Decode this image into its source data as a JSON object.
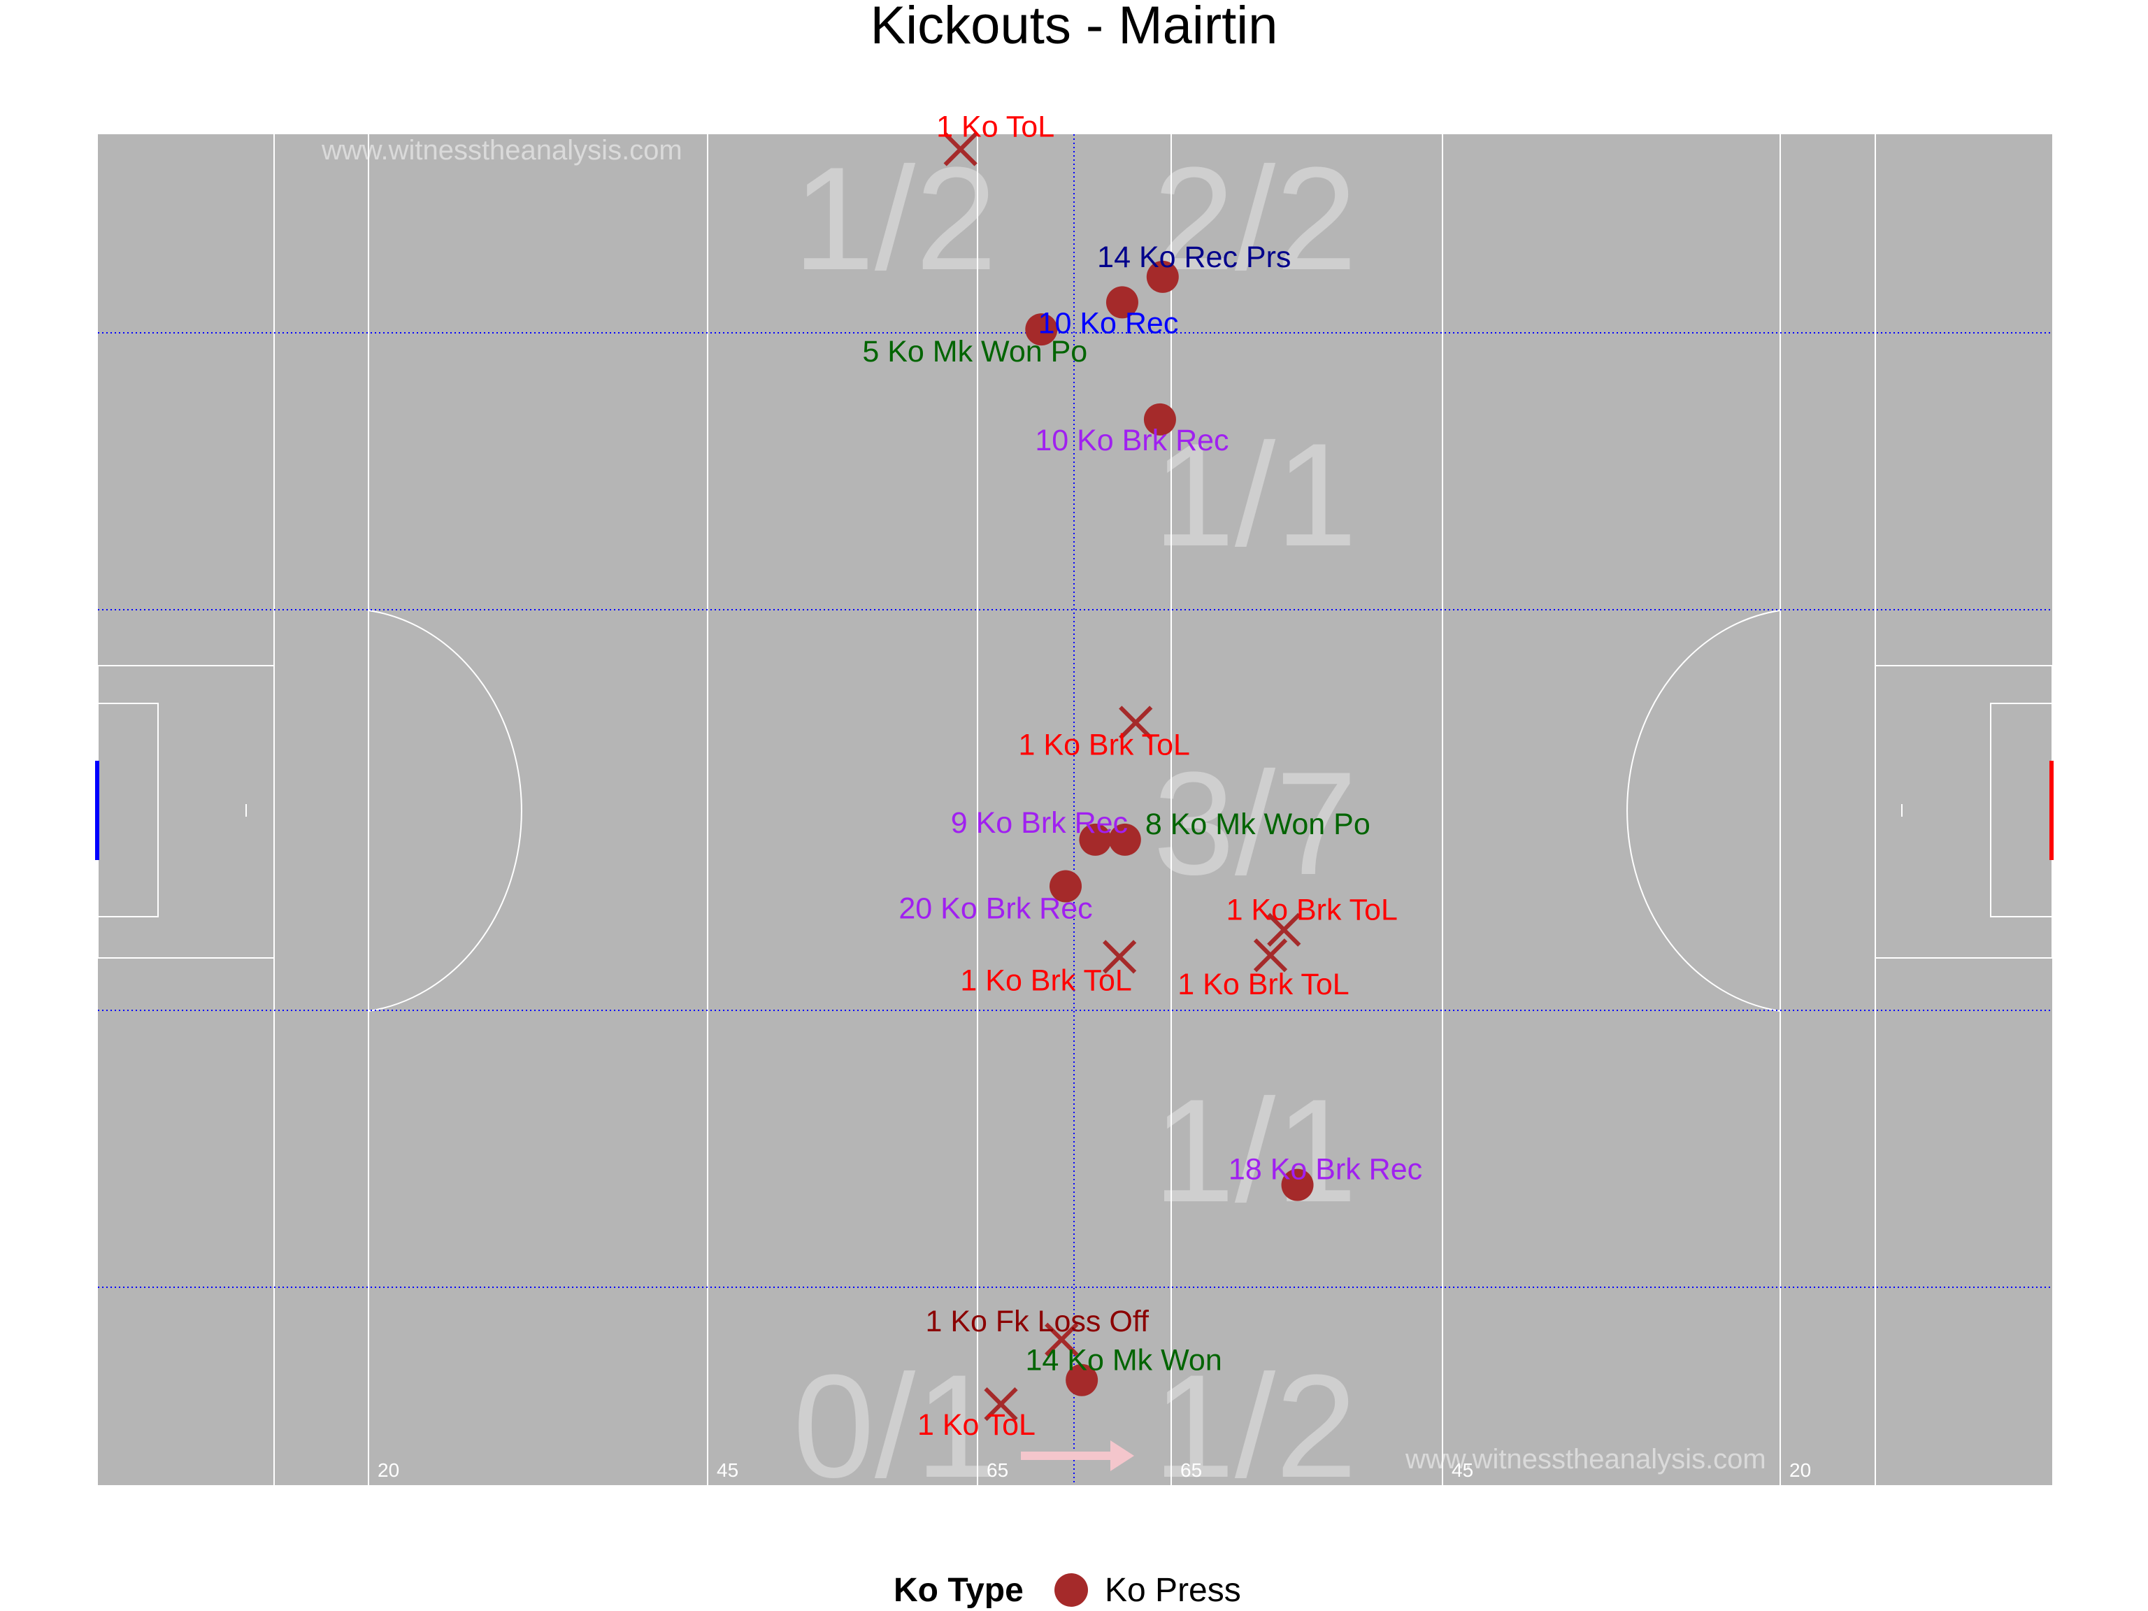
{
  "chart_data": {
    "type": "scatter",
    "title": "Kickouts - Mairtin",
    "watermark": "www.witnesstheanalysis.com",
    "colors": {
      "pitch": "#b5b5b5",
      "marker": "#a52a2a",
      "ToL": "#ff0000",
      "MkWonPo": "#006400",
      "MkWon": "#006400",
      "Rec": "#0000ff",
      "RecPrs": "#00008b",
      "BrkRec": "#a020f0",
      "FkLossOff": "#8b0000"
    },
    "distance_marks": [
      "20",
      "45",
      "65",
      "65",
      "45",
      "20"
    ],
    "zones": [
      {
        "row": "top",
        "side": "left",
        "label": "1/2"
      },
      {
        "row": "top",
        "side": "right",
        "label": "2/2"
      },
      {
        "row": "upper",
        "side": "right",
        "label": "1/1"
      },
      {
        "row": "middle",
        "side": "right",
        "label": "3/7"
      },
      {
        "row": "lower",
        "side": "right",
        "label": "1/1"
      },
      {
        "row": "bottom",
        "side": "left",
        "label": "0/1"
      },
      {
        "row": "bottom",
        "side": "right",
        "label": "1/2"
      }
    ],
    "points": [
      {
        "x": 64.0,
        "y": 89.0,
        "marker": "cross",
        "label": "1 Ko ToL",
        "outcome": "ToL"
      },
      {
        "x": 70.0,
        "y": 77.0,
        "marker": "circle",
        "label": "5 Ko Mk Won Po",
        "outcome": "MkWonPo"
      },
      {
        "x": 76.0,
        "y": 78.8,
        "marker": "circle",
        "label": "10 Ko Rec",
        "outcome": "Rec"
      },
      {
        "x": 79.0,
        "y": 80.5,
        "marker": "circle",
        "label": "14 Ko Rec Prs",
        "outcome": "RecPrs"
      },
      {
        "x": 78.8,
        "y": 71.0,
        "marker": "circle",
        "label": "10 Ko Brk Rec",
        "outcome": "BrkRec"
      },
      {
        "x": 77.0,
        "y": 50.8,
        "marker": "cross",
        "label": "1 Ko Brk ToL",
        "outcome": "ToL"
      },
      {
        "x": 74.0,
        "y": 43.0,
        "marker": "circle",
        "label": "9 Ko Brk Rec",
        "outcome": "BrkRec"
      },
      {
        "x": 76.2,
        "y": 43.0,
        "marker": "circle",
        "label": "8 Ko Mk Won Po",
        "outcome": "MkWonPo"
      },
      {
        "x": 71.8,
        "y": 39.9,
        "marker": "circle",
        "label": "20 Ko Brk Rec",
        "outcome": "BrkRec"
      },
      {
        "x": 75.8,
        "y": 35.2,
        "marker": "cross",
        "label": "1 Ko Brk ToL",
        "outcome": "ToL"
      },
      {
        "x": 87.0,
        "y": 35.3,
        "marker": "cross",
        "label": "1 Ko Brk ToL",
        "outcome": "ToL"
      },
      {
        "x": 88.0,
        "y": 37.0,
        "marker": "cross",
        "label": "1 Ko Brk ToL",
        "outcome": "ToL"
      },
      {
        "x": 89.0,
        "y": 20.0,
        "marker": "circle",
        "label": "18 Ko Brk Rec",
        "outcome": "BrkRec"
      },
      {
        "x": 71.5,
        "y": 9.7,
        "marker": "cross",
        "label": "1 Ko Fk Loss Off",
        "outcome": "FkLossOff"
      },
      {
        "x": 73.0,
        "y": 7.0,
        "marker": "circle",
        "label": "14 Ko Mk Won",
        "outcome": "MkWon"
      },
      {
        "x": 67.0,
        "y": 5.4,
        "marker": "cross",
        "label": "1 Ko ToL",
        "outcome": "ToL"
      }
    ],
    "xlim": [
      0,
      145
    ],
    "ylim": [
      0,
      90
    ],
    "grid": true,
    "legend": {
      "title": "Ko Type",
      "entries": [
        {
          "label": "Ko Press",
          "marker": "circle"
        }
      ],
      "position": "bottom"
    }
  }
}
